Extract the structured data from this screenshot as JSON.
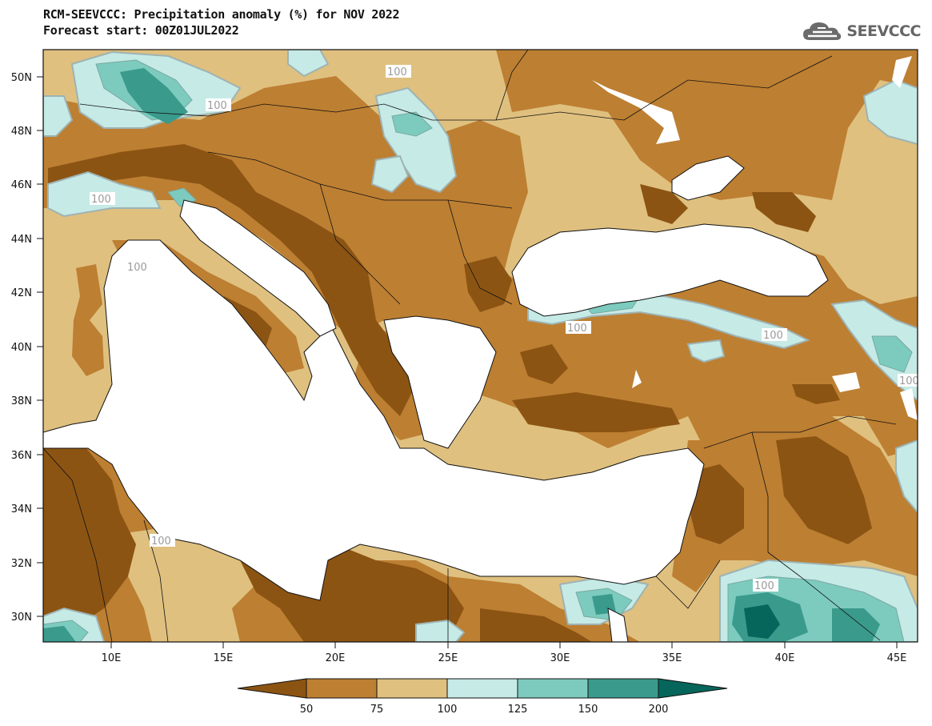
{
  "title": {
    "line1": "RCM-SEEVCCC: Precipitation anomaly (%) for NOV 2022",
    "line2": "Forecast start: 00Z01JUL2022"
  },
  "logo": {
    "text": "SEEVCCC",
    "icon": "cloud-icon"
  },
  "map": {
    "lat_labels": [
      "50N",
      "48N",
      "46N",
      "44N",
      "42N",
      "40N",
      "38N",
      "36N",
      "34N",
      "32N",
      "30N"
    ],
    "lon_labels": [
      "10E",
      "15E",
      "20E",
      "25E",
      "30E",
      "35E",
      "40E",
      "45E"
    ],
    "contour_label": "100"
  },
  "colorbar": {
    "labels": [
      "50",
      "75",
      "100",
      "125",
      "150",
      "200"
    ],
    "colors": [
      "#8c5413",
      "#bd7f32",
      "#dfc07f",
      "#c6eae6",
      "#7ccbbe",
      "#3a9a8c",
      "#06665b"
    ]
  }
}
